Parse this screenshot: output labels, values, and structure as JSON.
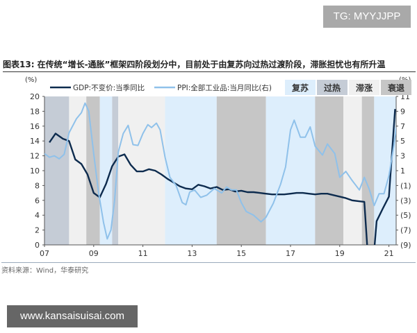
{
  "watermark_top": "TG: MYYJJPP",
  "watermark_bottom": "www.kansaisuisai.com",
  "title": "图表13:  在传统“增长-通胀”框架四阶段划分中，目前处于由复苏向过热过渡阶段，滞胀担忧也有所升温",
  "source": "资料来源：Wind，华泰研究",
  "chart_data": {
    "type": "line",
    "left_unit": "(%)",
    "right_unit": "(%)",
    "ylim_left": [
      0,
      20
    ],
    "ylim_right": [
      -9,
      11
    ],
    "left_ticks": [
      "0",
      "2",
      "4",
      "6",
      "8",
      "10",
      "12",
      "14",
      "16",
      "18",
      "20"
    ],
    "right_ticks": [
      "(9)",
      "(7)",
      "(5)",
      "(3)",
      "(1)",
      "1",
      "3",
      "5",
      "7",
      "9",
      "11"
    ],
    "x_ticks": [
      "07",
      "09",
      "11",
      "13",
      "15",
      "17",
      "19",
      "21"
    ],
    "xlim": [
      2007,
      2021.4
    ],
    "phase_legend": [
      {
        "name": "复苏",
        "color": "#ddeefc"
      },
      {
        "name": "过热",
        "color": "#c5ccd6"
      },
      {
        "name": "滞涨",
        "color": "#f0f0f0"
      },
      {
        "name": "衰退",
        "color": "#c6c6c6"
      }
    ],
    "phases": [
      {
        "from": 2007.0,
        "to": 2008.0,
        "phase": "过热"
      },
      {
        "from": 2008.0,
        "to": 2008.7,
        "phase": "滞涨"
      },
      {
        "from": 2008.7,
        "to": 2009.25,
        "phase": "衰退"
      },
      {
        "from": 2009.25,
        "to": 2009.75,
        "phase": "复苏"
      },
      {
        "from": 2009.75,
        "to": 2010.0,
        "phase": "过热"
      },
      {
        "from": 2010.0,
        "to": 2011.9,
        "phase": "滞涨"
      },
      {
        "from": 2011.9,
        "to": 2014.0,
        "phase": "复苏"
      },
      {
        "from": 2014.0,
        "to": 2016.0,
        "phase": "衰退"
      },
      {
        "from": 2016.0,
        "to": 2018.0,
        "phase": "复苏"
      },
      {
        "from": 2018.0,
        "to": 2019.15,
        "phase": "衰退"
      },
      {
        "from": 2019.15,
        "to": 2019.9,
        "phase": "滞涨"
      },
      {
        "from": 2019.9,
        "to": 2020.4,
        "phase": "衰退"
      },
      {
        "from": 2020.4,
        "to": 2021.3,
        "phase": "复苏"
      }
    ],
    "series": [
      {
        "name": "GDP:不变价:当季同比",
        "axis": "left",
        "color": "#0d2b4e",
        "x": [
          2007.2,
          2007.45,
          2007.75,
          2008.0,
          2008.25,
          2008.5,
          2008.75,
          2009.0,
          2009.25,
          2009.5,
          2009.75,
          2010.0,
          2010.25,
          2010.5,
          2010.75,
          2011.0,
          2011.25,
          2011.5,
          2011.75,
          2012.0,
          2012.25,
          2012.5,
          2012.75,
          2013.0,
          2013.25,
          2013.5,
          2013.75,
          2014.0,
          2014.25,
          2014.5,
          2014.75,
          2015.0,
          2015.25,
          2015.5,
          2015.75,
          2016.0,
          2016.25,
          2016.5,
          2016.75,
          2017.0,
          2017.25,
          2017.5,
          2017.75,
          2018.0,
          2018.25,
          2018.5,
          2018.75,
          2019.0,
          2019.25,
          2019.5,
          2019.75,
          2020.0,
          2020.25,
          2020.5,
          2020.75,
          2021.0,
          2021.25
        ],
        "y": [
          13.8,
          15.0,
          14.3,
          14.0,
          11.5,
          10.9,
          9.5,
          7.0,
          6.4,
          8.2,
          10.6,
          11.9,
          12.2,
          10.8,
          9.9,
          9.9,
          10.2,
          10.0,
          9.5,
          8.9,
          8.4,
          7.9,
          7.6,
          7.5,
          8.1,
          7.9,
          7.6,
          7.8,
          7.4,
          7.5,
          7.2,
          7.3,
          7.1,
          7.1,
          7.0,
          6.9,
          6.8,
          6.8,
          6.8,
          6.9,
          7.0,
          7.0,
          6.9,
          6.8,
          6.9,
          6.9,
          6.7,
          6.5,
          6.3,
          6.0,
          5.9,
          5.8,
          -6.8,
          3.2,
          4.9,
          6.5,
          18.3
        ]
      },
      {
        "name": "PPI:全部工业品:当月同比(右)",
        "axis": "right",
        "color": "#8fc1ea",
        "x": [
          2007.0,
          2007.2,
          2007.4,
          2007.6,
          2007.8,
          2008.0,
          2008.3,
          2008.5,
          2008.65,
          2008.8,
          2009.0,
          2009.2,
          2009.4,
          2009.55,
          2009.7,
          2009.85,
          2010.0,
          2010.2,
          2010.4,
          2010.6,
          2010.8,
          2011.0,
          2011.2,
          2011.35,
          2011.55,
          2011.7,
          2011.9,
          2012.1,
          2012.35,
          2012.6,
          2012.75,
          2012.9,
          2013.1,
          2013.35,
          2013.6,
          2013.9,
          2014.2,
          2014.4,
          2014.6,
          2014.8,
          2015.0,
          2015.2,
          2015.5,
          2015.8,
          2016.0,
          2016.3,
          2016.6,
          2016.8,
          2017.0,
          2017.15,
          2017.4,
          2017.6,
          2017.8,
          2018.0,
          2018.3,
          2018.5,
          2018.8,
          2019.0,
          2019.25,
          2019.5,
          2019.8,
          2020.0,
          2020.2,
          2020.4,
          2020.6,
          2020.8,
          2021.0,
          2021.2,
          2021.3
        ],
        "y": [
          3.3,
          2.8,
          3.0,
          2.6,
          3.2,
          6.1,
          8.0,
          8.8,
          10.1,
          9.0,
          3.3,
          -2.0,
          -6.0,
          -8.2,
          -7.0,
          -3.0,
          3.5,
          6.0,
          7.1,
          4.5,
          4.4,
          6.0,
          7.2,
          6.8,
          7.4,
          6.5,
          2.8,
          0.1,
          -1.0,
          -3.3,
          -3.6,
          -1.9,
          -1.6,
          -2.6,
          -2.3,
          -1.4,
          -2.0,
          -1.2,
          -1.6,
          -1.6,
          -3.3,
          -4.5,
          -5.0,
          -5.9,
          -5.3,
          -3.4,
          -0.8,
          1.5,
          6.5,
          7.8,
          5.5,
          5.5,
          6.9,
          4.3,
          3.1,
          4.6,
          3.3,
          0.1,
          0.9,
          -0.3,
          -1.6,
          0.1,
          -1.5,
          -3.7,
          -2.1,
          -2.1,
          0.3,
          4.4,
          6.8
        ]
      }
    ]
  }
}
